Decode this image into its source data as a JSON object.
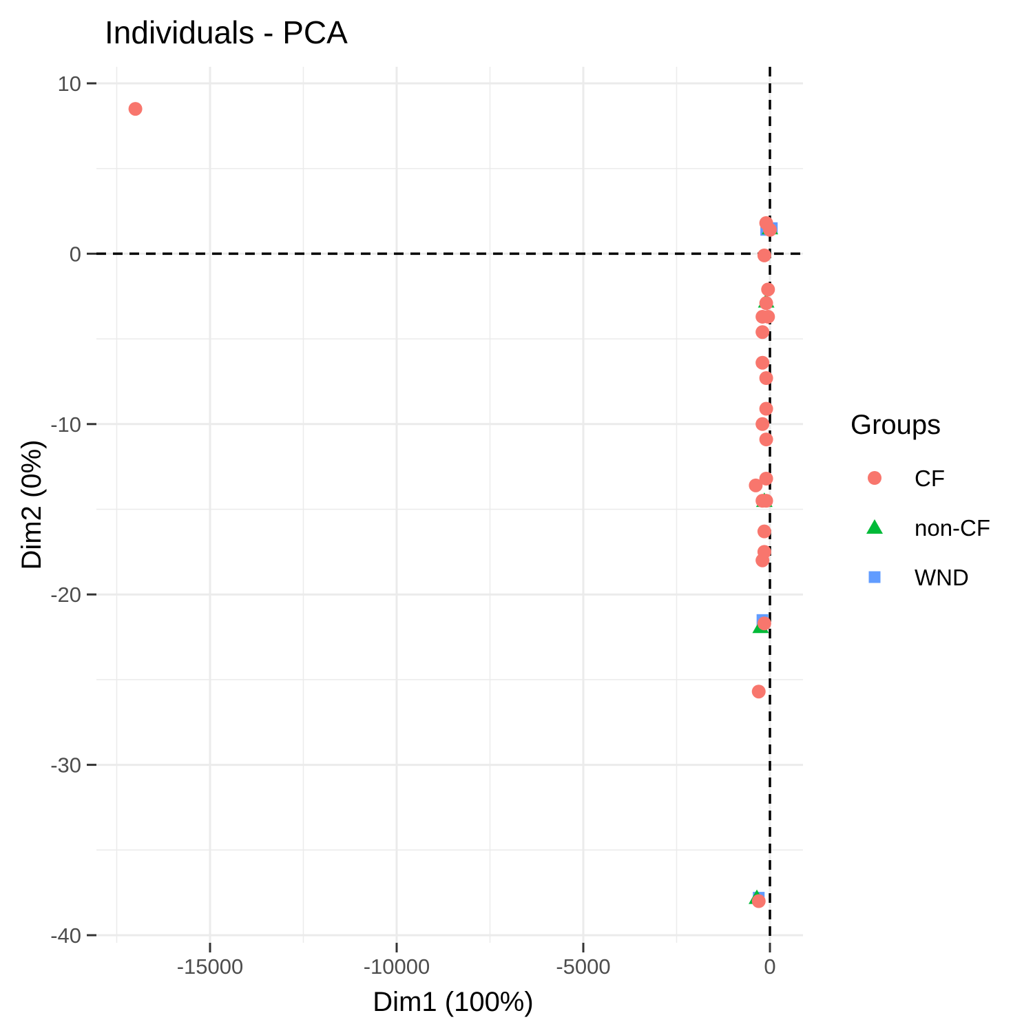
{
  "chart_data": {
    "type": "scatter",
    "title": "Individuals - PCA",
    "xlabel": "Dim1 (100%)",
    "ylabel": "Dim2 (0%)",
    "xlim": [
      -17600,
      900
    ],
    "ylim": [
      -40,
      10
    ],
    "xticks": [
      -15000,
      -10000,
      -5000,
      0
    ],
    "xtick_labels": [
      "-15000",
      "-10000",
      "-5000",
      "0"
    ],
    "yticks": [
      10,
      0,
      -10,
      -20,
      -30,
      -40
    ],
    "ytick_labels": [
      "10",
      "0",
      "-10",
      "-20",
      "-30",
      "-40"
    ],
    "grid": true,
    "reference_lines": {
      "x": 0,
      "y": 0,
      "style": "dashed"
    },
    "legend": {
      "title": "Groups",
      "position": "right"
    },
    "series": [
      {
        "name": "CF",
        "color": "#F8766D",
        "marker": "circle",
        "points": [
          {
            "x": -17000,
            "y": 8.5
          },
          {
            "x": -100,
            "y": 1.8
          },
          {
            "x": 0,
            "y": 1.4
          },
          {
            "x": -150,
            "y": -0.1
          },
          {
            "x": -50,
            "y": -2.1
          },
          {
            "x": -100,
            "y": -2.9
          },
          {
            "x": -50,
            "y": -3.7
          },
          {
            "x": -200,
            "y": -3.7
          },
          {
            "x": -200,
            "y": -4.6
          },
          {
            "x": -200,
            "y": -6.4
          },
          {
            "x": -100,
            "y": -7.3
          },
          {
            "x": -100,
            "y": -9.1
          },
          {
            "x": -200,
            "y": -10.0
          },
          {
            "x": -100,
            "y": -10.9
          },
          {
            "x": -100,
            "y": -13.2
          },
          {
            "x": -380,
            "y": -13.6
          },
          {
            "x": -100,
            "y": -14.5
          },
          {
            "x": -200,
            "y": -14.5
          },
          {
            "x": -150,
            "y": -16.3
          },
          {
            "x": -150,
            "y": -17.5
          },
          {
            "x": -200,
            "y": -18.0
          },
          {
            "x": -150,
            "y": -21.7
          },
          {
            "x": -300,
            "y": -25.7
          },
          {
            "x": -300,
            "y": -38.0
          }
        ]
      },
      {
        "name": "non-CF",
        "color": "#00BA38",
        "marker": "triangle",
        "points": [
          {
            "x": 0,
            "y": 1.5
          },
          {
            "x": -100,
            "y": -2.8
          },
          {
            "x": -150,
            "y": -14.5
          },
          {
            "x": -250,
            "y": -21.9
          },
          {
            "x": -350,
            "y": -37.8
          }
        ]
      },
      {
        "name": "WND",
        "color": "#619CFF",
        "marker": "square",
        "points": [
          {
            "x": 50,
            "y": 1.5
          },
          {
            "x": -100,
            "y": 1.4
          },
          {
            "x": -200,
            "y": -21.5
          },
          {
            "x": -300,
            "y": -37.8
          }
        ]
      }
    ]
  }
}
